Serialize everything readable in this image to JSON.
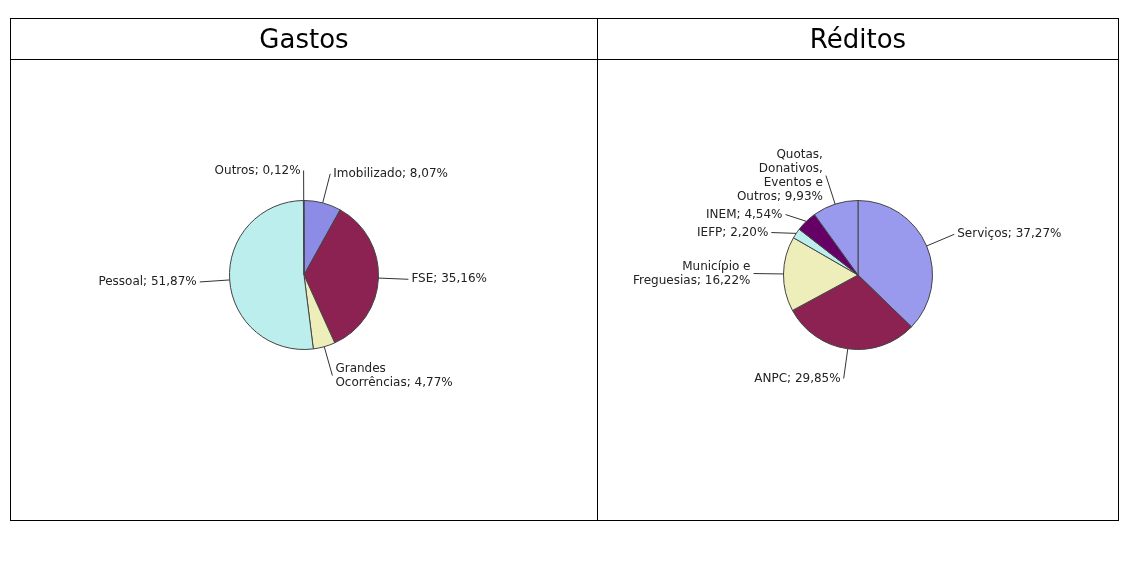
{
  "chart_data": [
    {
      "type": "pie",
      "title": "Gastos",
      "categories": [
        "Imobilizado",
        "FSE",
        "Grandes Ocorrências",
        "Pessoal",
        "Outros"
      ],
      "values": [
        8.07,
        35.16,
        4.77,
        51.87,
        0.12
      ],
      "value_labels": [
        "8,07%",
        "35,16%",
        "4,77%",
        "51,87%",
        "0,12%"
      ],
      "colors": [
        "#8c8ce6",
        "#8b2252",
        "#eeeebb",
        "#bdeeee",
        "#7a6aa0"
      ],
      "legend": false
    },
    {
      "type": "pie",
      "title": "Réditos",
      "categories": [
        "Serviços",
        "ANPC",
        "Município e Freguesias",
        "IEFP",
        "INEM",
        "Quotas, Donativos, Eventos e Outros"
      ],
      "values": [
        37.27,
        29.85,
        16.22,
        2.2,
        4.54,
        9.93
      ],
      "value_labels": [
        "37,27%",
        "29,85%",
        "16,22%",
        "2,20%",
        "4,54%",
        "9,93%"
      ],
      "colors": [
        "#9999ee",
        "#8b2252",
        "#eeeebb",
        "#bdeeee",
        "#660066",
        "#9999ee"
      ],
      "legend": false
    }
  ]
}
